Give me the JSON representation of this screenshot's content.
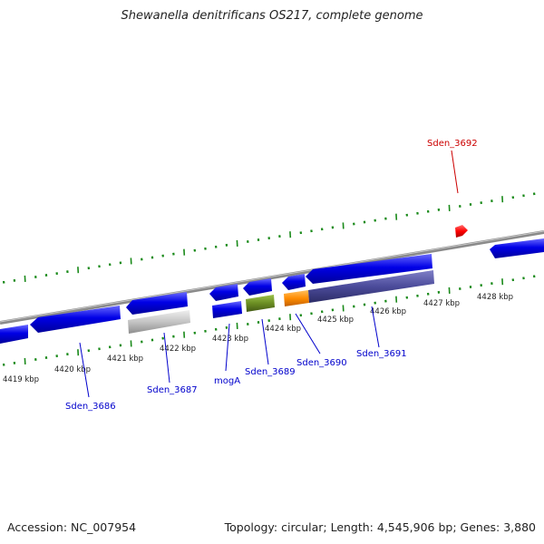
{
  "title": "Shewanella denitrificans OS217, complete genome",
  "footer": {
    "accession": "Accession: NC_007954",
    "summary": "Topology: circular; Length: 4,545,906 bp; Genes: 3,880"
  },
  "ticks": [
    "4419 kbp",
    "4420 kbp",
    "4421 kbp",
    "4422 kbp",
    "4423 kbp",
    "4424 kbp",
    "4425 kbp",
    "4426 kbp",
    "4427 kbp",
    "4428 kbp"
  ],
  "genes": [
    {
      "name": "Sden_3686",
      "color": "#0000cc"
    },
    {
      "name": "Sden_3687",
      "color": "#0000cc"
    },
    {
      "name": "mogA",
      "color": "#0000cc"
    },
    {
      "name": "Sden_3689",
      "color": "#0000cc"
    },
    {
      "name": "Sden_3690",
      "color": "#0000cc"
    },
    {
      "name": "Sden_3691",
      "color": "#0000cc"
    },
    {
      "name": "Sden_3692",
      "color": "#cc0000"
    }
  ],
  "colors": {
    "backbone": "#8a8a8a",
    "tick": "#1a8a1a",
    "cds": "#0000e6",
    "pseudo": "#c4c4c4",
    "olive": "#6b8e23",
    "orange": "#ff8c00",
    "slate": "#4b4b9a",
    "red": "#ff0000",
    "label_blue": "#0000cc",
    "label_red": "#cc0000"
  }
}
